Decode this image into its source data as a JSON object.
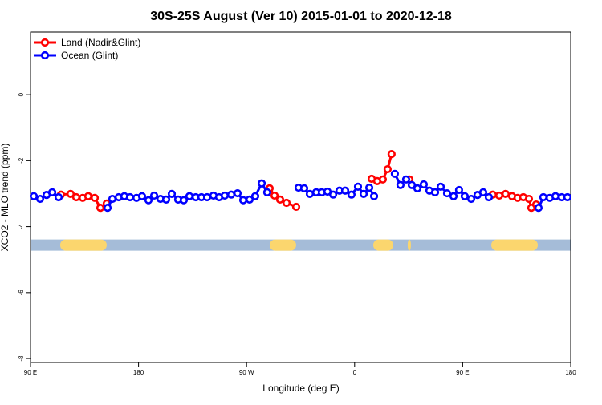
{
  "chart_data": {
    "type": "line",
    "title": "30S-25S August (Ver 10)   2015-01-01 to 2020-12-18",
    "x_label": "Longitude (deg E)",
    "y_label": "XCO2 - MLO trend (ppm)",
    "xlim": [
      90,
      540
    ],
    "ylim": [
      -8.12,
      1.9
    ],
    "xticks": [
      {
        "value": 90,
        "label": "90 E"
      },
      180,
      {
        "value": 270,
        "label": "90 W"
      },
      {
        "value": 360,
        "label": "0"
      },
      {
        "value": 450,
        "label": "90 E"
      },
      {
        "value": 540,
        "label": "180"
      }
    ],
    "yticks": [
      0,
      -2,
      -4,
      -6,
      -8
    ],
    "legend": "upper left",
    "series": [
      {
        "name": "Land (Nadir&Glint)",
        "color": "#ff0000",
        "x": [
          115.4,
          123.4,
          128.1,
          133.5,
          138.1,
          143.5,
          148.2,
          153.5,
          null,
          289.2,
          293.3,
          297.9,
          303.3,
          311.3,
          null,
          374.2,
          378.8,
          383.5,
          387.5,
          390.8,
          null,
          405.6,
          null,
          475.1,
          480.5,
          485.8,
          491.2,
          495.8,
          500.5,
          505.2,
          507.2,
          511.2
        ],
        "values": [
          -3.03,
          -3.01,
          -3.11,
          -3.13,
          -3.08,
          -3.13,
          -3.43,
          -3.3,
          null,
          -2.84,
          -3.06,
          -3.18,
          -3.28,
          -3.4,
          null,
          -2.55,
          -2.62,
          -2.57,
          -2.26,
          -1.8,
          null,
          -2.57,
          null,
          -3.03,
          -3.06,
          -3.01,
          -3.08,
          -3.13,
          -3.11,
          -3.16,
          -3.43,
          -3.33
        ]
      },
      {
        "name": "Ocean (Glint)",
        "color": "#0000ff",
        "x": [
          92.7,
          98.0,
          103.4,
          108.1,
          113.4,
          null,
          154.2,
          158.2,
          163.5,
          168.2,
          172.9,
          178.3,
          182.9,
          188.3,
          193.0,
          198.3,
          203.0,
          207.7,
          213.0,
          217.7,
          222.4,
          227.7,
          232.4,
          237.1,
          242.4,
          247.1,
          251.8,
          257.2,
          262.5,
          267.2,
          272.5,
          277.2,
          282.6,
          287.2,
          null,
          313.3,
          318.0,
          322.7,
          328.0,
          332.7,
          337.4,
          342.1,
          347.4,
          352.1,
          357.4,
          362.8,
          367.5,
          372.2,
          376.2,
          null,
          393.5,
          398.2,
          402.9,
          407.6,
          412.3,
          417.6,
          422.3,
          427.0,
          431.7,
          437.0,
          442.4,
          447.0,
          451.7,
          457.1,
          462.4,
          467.1,
          471.8,
          null,
          513.2,
          517.2,
          522.6,
          527.3,
          532.6,
          537.3
        ],
        "values": [
          -3.08,
          -3.16,
          -3.04,
          -2.96,
          -3.11,
          null,
          -3.43,
          -3.16,
          -3.11,
          -3.08,
          -3.11,
          -3.13,
          -3.08,
          -3.2,
          -3.06,
          -3.16,
          -3.18,
          -3.01,
          -3.18,
          -3.2,
          -3.08,
          -3.11,
          -3.11,
          -3.11,
          -3.06,
          -3.11,
          -3.06,
          -3.03,
          -2.99,
          -3.2,
          -3.18,
          -3.08,
          -2.69,
          -2.96,
          null,
          -2.82,
          -2.84,
          -3.01,
          -2.96,
          -2.96,
          -2.94,
          -3.03,
          -2.91,
          -2.91,
          -3.03,
          -2.79,
          -3.01,
          -2.82,
          -3.08,
          null,
          -2.4,
          -2.74,
          -2.57,
          -2.74,
          -2.84,
          -2.72,
          -2.91,
          -2.96,
          -2.79,
          -2.99,
          -3.08,
          -2.89,
          -3.08,
          -3.16,
          -3.04,
          -2.96,
          -3.11,
          null,
          -3.43,
          -3.11,
          -3.13,
          -3.08,
          -3.11,
          -3.11
        ]
      }
    ],
    "band": {
      "y": -4.56,
      "ocean_color": "#a5bcd8",
      "land_color": "#fbd66e",
      "land": [
        [
          114.7,
          153.5
        ],
        [
          289.2,
          311.3
        ],
        [
          375.5,
          392.2
        ],
        [
          404.2,
          406.9
        ],
        [
          473.8,
          512.6
        ]
      ]
    }
  }
}
